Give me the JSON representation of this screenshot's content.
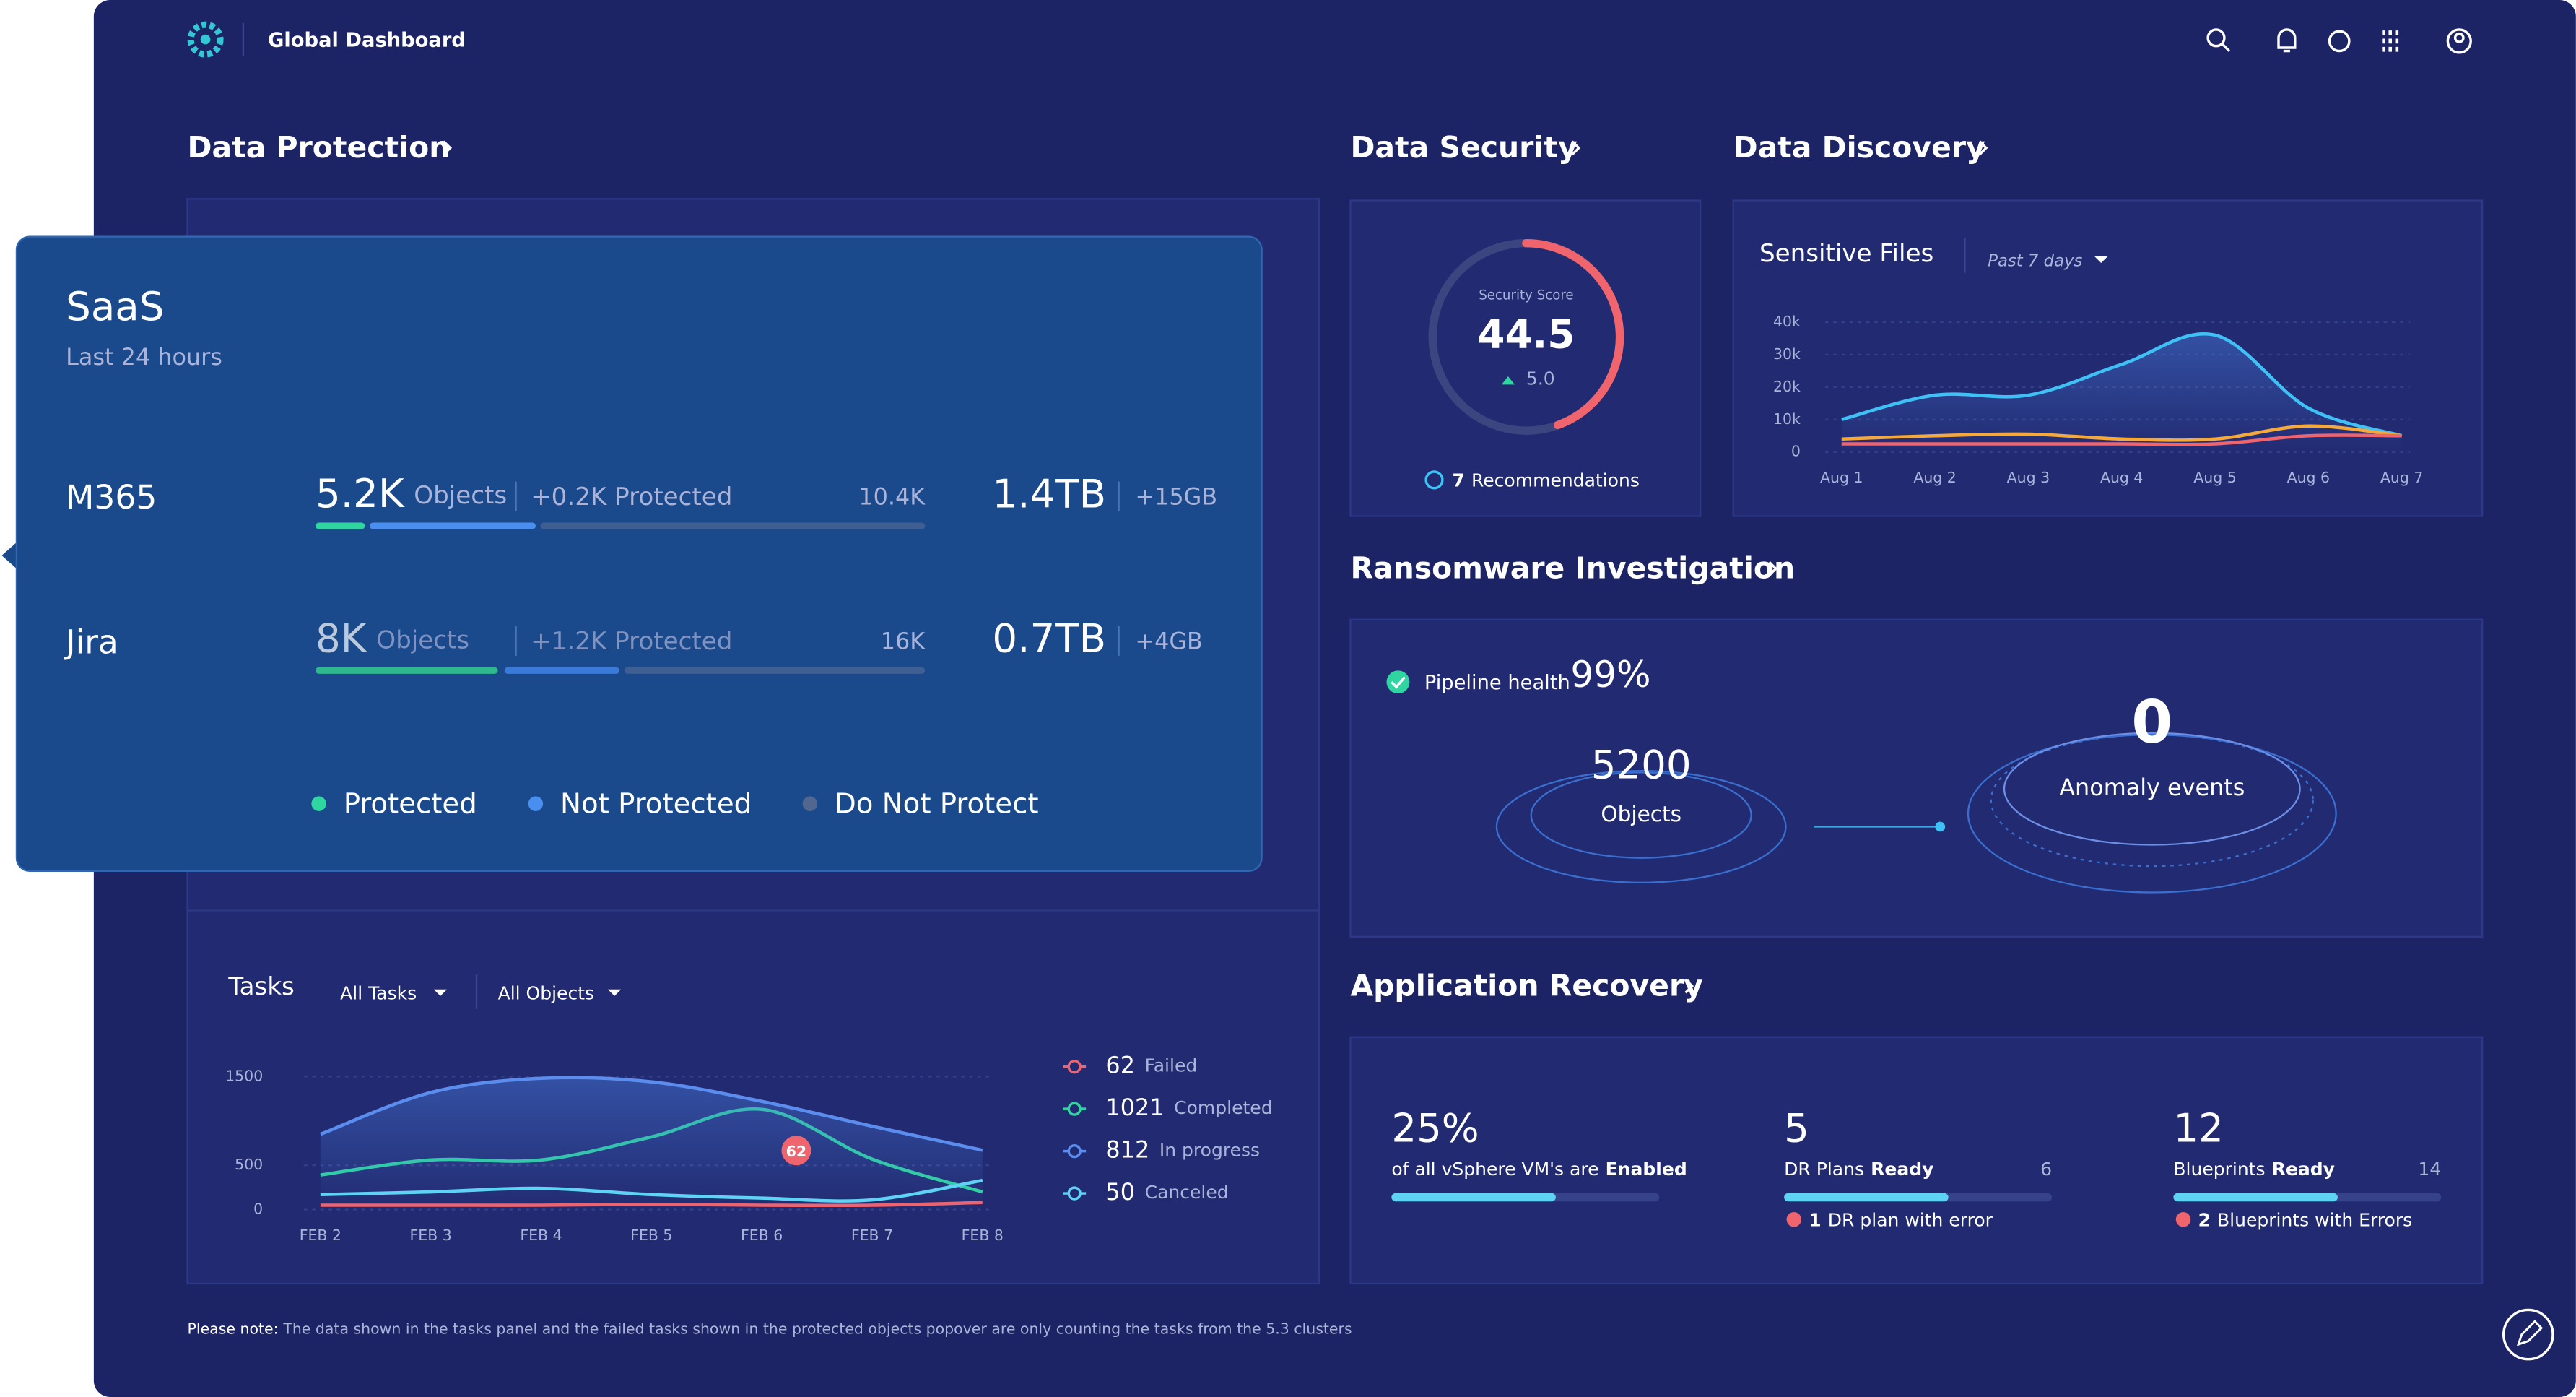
{
  "header": {
    "title": "Global Dashboard"
  },
  "data_protection": {
    "title": "Data Protection",
    "saas": {
      "title": "SaaS",
      "subtitle": "Last 24 hours",
      "rows": [
        {
          "name": "M365",
          "objects": "5.2K",
          "objects_label": "Objects",
          "protected": "+0.2K Protected",
          "total": "10.4K",
          "size": "1.4TB",
          "size_change": "+15GB"
        },
        {
          "name": "Jira",
          "objects": "8K",
          "objects_label": "Objects",
          "protected": "+1.2K Protected",
          "total": "16K",
          "size": "0.7TB",
          "size_change": "+4GB"
        }
      ],
      "legend": [
        {
          "name": "Protected",
          "color": "#2fd6a0"
        },
        {
          "name": "Not Protected",
          "color": "#4a8ef0"
        },
        {
          "name": "Do Not Protect",
          "color": "#51678f"
        }
      ]
    },
    "tasks": {
      "type": "line",
      "title": "Tasks",
      "filters": [
        "All Tasks",
        "All Objects"
      ],
      "categories": [
        "FEB 2",
        "FEB 3",
        "FEB 4",
        "FEB 5",
        "FEB 6",
        "FEB 7",
        "FEB 8"
      ],
      "ylim": [
        0,
        1500
      ],
      "yticks": [
        0,
        500,
        1500
      ],
      "series": [
        {
          "name": "Failed",
          "total": 62,
          "color": "#f0646e",
          "values": [
            50,
            50,
            50,
            60,
            50,
            50,
            80
          ]
        },
        {
          "name": "Completed",
          "total": 1021,
          "color": "#2fd6a0",
          "values": [
            390,
            560,
            560,
            820,
            1130,
            570,
            200
          ]
        },
        {
          "name": "In progress",
          "total": 812,
          "color": "#5b8def",
          "values": [
            850,
            1320,
            1480,
            1440,
            1220,
            940,
            670
          ]
        },
        {
          "name": "Canceled",
          "total": 50,
          "color": "#5fd3f3",
          "values": [
            170,
            200,
            240,
            170,
            130,
            110,
            330
          ]
        }
      ],
      "annotation": "62"
    }
  },
  "data_security": {
    "title": "Data Security",
    "score_label": "Security Score",
    "score": 44.5,
    "change": "5.0",
    "recommendations_count": 7,
    "recommendations_label": "Recommendations"
  },
  "data_discovery": {
    "title": "Data Discovery",
    "sensitive_files": {
      "type": "line",
      "title": "Sensitive Files",
      "period": "Past 7 days",
      "categories": [
        "Aug 1",
        "Aug 2",
        "Aug 3",
        "Aug 4",
        "Aug 5",
        "Aug 6",
        "Aug 7"
      ],
      "ylim": [
        0,
        40000
      ],
      "yticks": [
        0,
        {
          "value": 10000,
          "label": "10k"
        },
        {
          "value": 20000,
          "label": "20k"
        },
        {
          "value": 30000,
          "label": "30k"
        },
        {
          "value": 40000,
          "label": "40k"
        }
      ],
      "series": [
        {
          "color": "#3fc1f5",
          "values": [
            10000,
            17500,
            17500,
            27000,
            36000,
            13500,
            5000
          ]
        },
        {
          "color": "#f5a93b",
          "values": [
            4000,
            5000,
            5500,
            4000,
            4000,
            8000,
            5000
          ]
        },
        {
          "color": "#f0646e",
          "values": [
            2500,
            2500,
            2500,
            2500,
            2500,
            5000,
            5000
          ]
        }
      ]
    }
  },
  "ransomware": {
    "title": "Ransomware Investigation",
    "pipeline_label": "Pipeline health",
    "pipeline_value": "99%",
    "objects": 5200,
    "objects_label": "Objects",
    "anomalies": 0,
    "anomalies_label": "Anomaly events"
  },
  "application_recovery": {
    "title": "Application Recovery",
    "items": [
      {
        "value": "25%",
        "label": "of all vSphere VM's are",
        "status": "Enabled"
      },
      {
        "value": 5,
        "label": "DR Plans",
        "status": "Ready",
        "total": 6,
        "errors": 1,
        "error_label": "DR plan with error"
      },
      {
        "value": 12,
        "label": "Blueprints",
        "status": "Ready",
        "total": 14,
        "errors": 2,
        "error_label": "Blueprints with Errors"
      }
    ]
  },
  "note": {
    "label": "Please note:",
    "text": "The data shown in the tasks panel and the failed tasks shown in the protected objects popover are only counting the tasks from the 5.3 clusters"
  }
}
